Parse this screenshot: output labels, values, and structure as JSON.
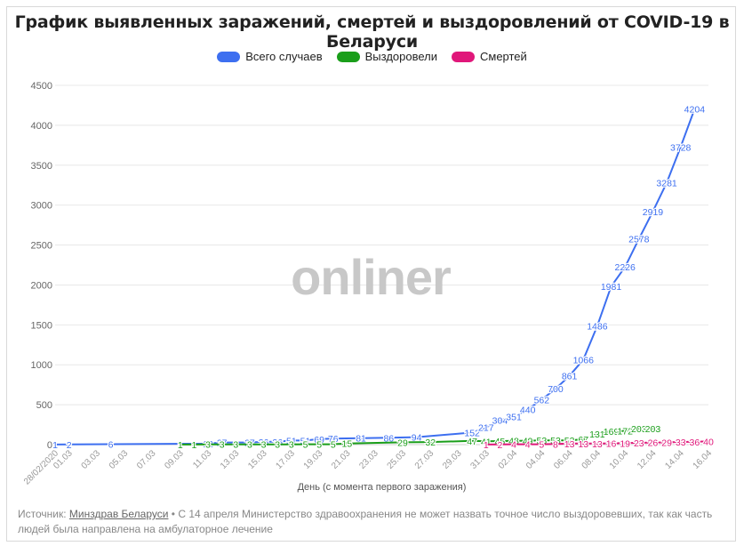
{
  "title": "График выявленных заражений, смертей и выздоровлений от COVID-19 в Беларуси",
  "watermark": "onliner",
  "source": {
    "prefix": "Источник: ",
    "link_text": "Минздрав Беларуси",
    "note": " • С 14 апреля Министерство здравоохранения не может назвать точное число выздоровевших, так как часть людей была направлена на амбулаторное лечение"
  },
  "chart_data": {
    "type": "line",
    "title": "График выявленных заражений, смертей и выздоровлений от COVID-19 в Беларуси",
    "xlabel": "День (с момента первого заражения)",
    "ylabel": "",
    "ylim": [
      0,
      4500
    ],
    "yticks": [
      0,
      500,
      1000,
      1500,
      2000,
      2500,
      3000,
      3500,
      4000,
      4500
    ],
    "grid": true,
    "legend_position": "top",
    "x_tick_labels": [
      "28/02/2020",
      "01.03",
      "03.03",
      "05.03",
      "07.03",
      "09.03",
      "11.03",
      "13.03",
      "15.03",
      "17.03",
      "19.03",
      "21.03",
      "23.03",
      "25.03",
      "27.03",
      "29.03",
      "31.03",
      "02.04",
      "04.04",
      "06.04",
      "08.04",
      "10.04",
      "12.04",
      "14.04",
      "16.04"
    ],
    "series": [
      {
        "name": "Всего случаев",
        "color": "#3d6ff0",
        "points": [
          [
            "28/02/2020",
            1
          ],
          [
            "01.03",
            2
          ],
          [
            "04.03",
            6
          ],
          [
            "11.03",
            12
          ],
          [
            "12.03",
            27
          ],
          [
            "14.03",
            27
          ],
          [
            "15.03",
            36
          ],
          [
            "16.03",
            36
          ],
          [
            "17.03",
            51
          ],
          [
            "18.03",
            51
          ],
          [
            "19.03",
            69
          ],
          [
            "20.03",
            76
          ],
          [
            "22.03",
            81
          ],
          [
            "24.03",
            86
          ],
          [
            "26.03",
            94
          ],
          [
            "30.03",
            152
          ],
          [
            "31.03",
            217
          ],
          [
            "01.04",
            304
          ],
          [
            "02.04",
            351
          ],
          [
            "03.04",
            440
          ],
          [
            "04.04",
            562
          ],
          [
            "05.04",
            700
          ],
          [
            "06.04",
            861
          ],
          [
            "07.04",
            1066
          ],
          [
            "08.04",
            1486
          ],
          [
            "09.04",
            1981
          ],
          [
            "10.04",
            2226
          ],
          [
            "11.04",
            2578
          ],
          [
            "12.04",
            2919
          ],
          [
            "13.04",
            3281
          ],
          [
            "14.04",
            3728
          ],
          [
            "15.04",
            4204
          ]
        ]
      },
      {
        "name": "Выздоровели",
        "color": "#1a9e1a",
        "points": [
          [
            "09.03",
            1
          ],
          [
            "10.03",
            1
          ],
          [
            "11.03",
            3
          ],
          [
            "12.03",
            3
          ],
          [
            "13.03",
            3
          ],
          [
            "14.03",
            3
          ],
          [
            "15.03",
            3
          ],
          [
            "16.03",
            3
          ],
          [
            "17.03",
            3
          ],
          [
            "18.03",
            5
          ],
          [
            "19.03",
            5
          ],
          [
            "20.03",
            5
          ],
          [
            "21.03",
            15
          ],
          [
            "25.03",
            29
          ],
          [
            "27.03",
            32
          ],
          [
            "30.03",
            47
          ],
          [
            "31.03",
            41
          ],
          [
            "01.04",
            45
          ],
          [
            "02.04",
            48
          ],
          [
            "03.04",
            49
          ],
          [
            "04.04",
            53
          ],
          [
            "05.04",
            53
          ],
          [
            "06.04",
            53
          ],
          [
            "07.04",
            67
          ],
          [
            "08.04",
            131
          ],
          [
            "09.04",
            169
          ],
          [
            "10.04",
            172
          ],
          [
            "11.04",
            203
          ],
          [
            "12.04",
            203
          ]
        ]
      },
      {
        "name": "Смертей",
        "color": "#e0177a",
        "points": [
          [
            "31.03",
            1
          ],
          [
            "01.04",
            2
          ],
          [
            "02.04",
            4
          ],
          [
            "03.04",
            4
          ],
          [
            "04.04",
            5
          ],
          [
            "05.04",
            8
          ],
          [
            "06.04",
            13
          ],
          [
            "07.04",
            13
          ],
          [
            "08.04",
            13
          ],
          [
            "09.04",
            16
          ],
          [
            "10.04",
            19
          ],
          [
            "11.04",
            23
          ],
          [
            "12.04",
            26
          ],
          [
            "13.04",
            29
          ],
          [
            "14.04",
            33
          ],
          [
            "15.04",
            36
          ],
          [
            "16.04",
            40
          ]
        ]
      }
    ]
  }
}
